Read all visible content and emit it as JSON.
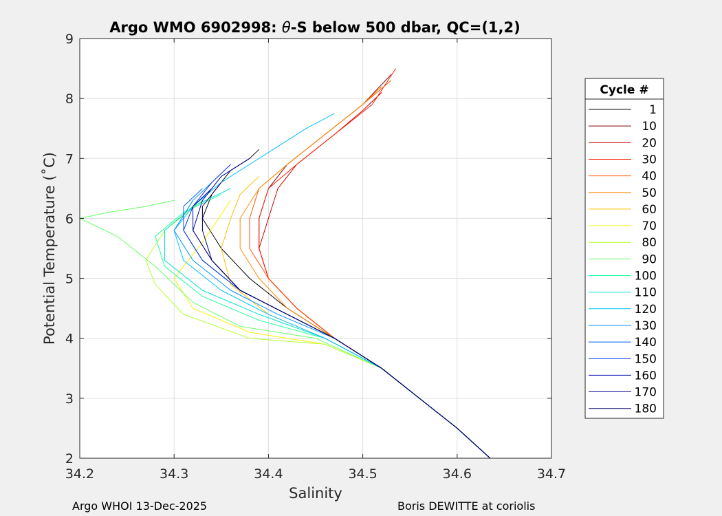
{
  "chart_data": {
    "type": "line",
    "title_prefix": "Argo WMO 6902998: ",
    "title_theta": "θ",
    "title_suffix": "-S below 500 dbar,  QC=(1,2)",
    "xlabel": "Salinity",
    "ylabel": "Potential Temperature (˚C)",
    "xlim": [
      34.2,
      34.7
    ],
    "ylim": [
      2,
      9
    ],
    "xticks": [
      34.2,
      34.3,
      34.4,
      34.5,
      34.6,
      34.7
    ],
    "yticks": [
      2,
      3,
      4,
      5,
      6,
      7,
      8,
      9
    ],
    "xtick_labels": [
      "34.2",
      "34.3",
      "34.4",
      "34.5",
      "34.6",
      "34.7"
    ],
    "ytick_labels": [
      "2",
      "3",
      "4",
      "5",
      "6",
      "7",
      "8",
      "9"
    ],
    "grid": true,
    "legend_title": "Cycle #",
    "legend_location": "outside-right",
    "legend": [
      {
        "label": "1",
        "color": "#000000"
      },
      {
        "label": "10",
        "color": "#7f0000"
      },
      {
        "label": "20",
        "color": "#c40000"
      },
      {
        "label": "30",
        "color": "#ff1a00"
      },
      {
        "label": "40",
        "color": "#ff5500"
      },
      {
        "label": "50",
        "color": "#ff8c00"
      },
      {
        "label": "60",
        "color": "#ffbf00"
      },
      {
        "label": "70",
        "color": "#f5f500"
      },
      {
        "label": "80",
        "color": "#b3ff33"
      },
      {
        "label": "90",
        "color": "#66ff66"
      },
      {
        "label": "100",
        "color": "#1aff9c"
      },
      {
        "label": "110",
        "color": "#00e0d0"
      },
      {
        "label": "120",
        "color": "#00bfff"
      },
      {
        "label": "130",
        "color": "#0090ff"
      },
      {
        "label": "140",
        "color": "#0060ff"
      },
      {
        "label": "150",
        "color": "#0030e0"
      },
      {
        "label": "160",
        "color": "#0000b0"
      },
      {
        "label": "170",
        "color": "#000090"
      },
      {
        "label": "180",
        "color": "#000060"
      }
    ],
    "series": [
      {
        "name": "Cycle 1",
        "color": "#000000",
        "x": [
          34.635,
          34.6,
          34.56,
          34.52,
          34.47,
          34.42,
          34.38,
          34.35,
          34.33,
          34.34,
          34.36,
          34.38,
          34.39
        ],
        "y": [
          2.0,
          2.5,
          3.0,
          3.5,
          4.0,
          4.5,
          5.0,
          5.5,
          6.0,
          6.4,
          6.8,
          7.0,
          7.15
        ]
      },
      {
        "name": "Cycle 10",
        "color": "#7f0000",
        "x": [
          34.635,
          34.6,
          34.56,
          34.52,
          34.47,
          34.43,
          34.4,
          34.39,
          34.39,
          34.4,
          34.42,
          34.46,
          34.5,
          34.53
        ],
        "y": [
          2.0,
          2.5,
          3.0,
          3.5,
          4.0,
          4.5,
          5.0,
          5.5,
          6.0,
          6.5,
          6.9,
          7.4,
          7.9,
          8.4
        ]
      },
      {
        "name": "Cycle 20",
        "color": "#c40000",
        "x": [
          34.635,
          34.6,
          34.56,
          34.52,
          34.47,
          34.43,
          34.4,
          34.39,
          34.4,
          34.41,
          34.43,
          34.47,
          34.5,
          34.52
        ],
        "y": [
          2.0,
          2.5,
          3.0,
          3.5,
          4.0,
          4.5,
          5.0,
          5.5,
          6.0,
          6.5,
          6.9,
          7.4,
          7.8,
          8.1
        ]
      },
      {
        "name": "Cycle 30",
        "color": "#ff1a00",
        "x": [
          34.635,
          34.6,
          34.56,
          34.52,
          34.47,
          34.43,
          34.4,
          34.39,
          34.39,
          34.4,
          34.43,
          34.47,
          34.51,
          34.535
        ],
        "y": [
          2.0,
          2.5,
          3.0,
          3.5,
          4.0,
          4.5,
          5.0,
          5.5,
          6.0,
          6.5,
          6.9,
          7.4,
          7.9,
          8.5
        ]
      },
      {
        "name": "Cycle 40",
        "color": "#ff5500",
        "x": [
          34.635,
          34.6,
          34.56,
          34.52,
          34.47,
          34.43,
          34.4,
          34.38,
          34.38,
          34.39,
          34.42,
          34.46,
          34.5,
          34.53
        ],
        "y": [
          2.0,
          2.5,
          3.0,
          3.5,
          4.0,
          4.5,
          5.0,
          5.5,
          6.0,
          6.5,
          6.9,
          7.4,
          7.9,
          8.3
        ]
      },
      {
        "name": "Cycle 50",
        "color": "#ff8c00",
        "x": [
          34.635,
          34.6,
          34.56,
          34.52,
          34.47,
          34.42,
          34.39,
          34.37,
          34.37,
          34.39,
          34.42,
          34.46,
          34.5,
          34.52
        ],
        "y": [
          2.0,
          2.5,
          3.0,
          3.5,
          4.0,
          4.5,
          5.0,
          5.5,
          6.0,
          6.5,
          6.9,
          7.4,
          7.9,
          8.2
        ]
      },
      {
        "name": "Cycle 60",
        "color": "#ffbf00",
        "x": [
          34.635,
          34.6,
          34.56,
          34.52,
          34.46,
          34.4,
          34.36,
          34.35,
          34.36,
          34.37,
          34.39
        ],
        "y": [
          2.0,
          2.5,
          3.0,
          3.5,
          4.0,
          4.4,
          4.9,
          5.5,
          6.0,
          6.4,
          6.7
        ]
      },
      {
        "name": "Cycle 70",
        "color": "#f5f500",
        "x": [
          34.635,
          34.6,
          34.56,
          34.52,
          34.46,
          34.38,
          34.32,
          34.3,
          34.33,
          34.36
        ],
        "y": [
          2.0,
          2.5,
          3.0,
          3.5,
          3.9,
          4.1,
          4.5,
          5.0,
          5.6,
          6.3
        ]
      },
      {
        "name": "Cycle 80",
        "color": "#b3ff33",
        "x": [
          34.635,
          34.6,
          34.56,
          34.52,
          34.46,
          34.38,
          34.31,
          34.28,
          34.27,
          34.29,
          34.33
        ],
        "y": [
          2.0,
          2.5,
          3.0,
          3.5,
          3.9,
          4.0,
          4.4,
          4.9,
          5.3,
          5.8,
          6.3
        ]
      },
      {
        "name": "Cycle 90",
        "color": "#66ff66",
        "x": [
          34.635,
          34.6,
          34.56,
          34.52,
          34.45,
          34.37,
          34.32,
          34.28,
          34.24,
          34.2,
          34.23,
          34.27,
          34.3
        ],
        "y": [
          2.0,
          2.5,
          3.0,
          3.5,
          4.0,
          4.2,
          4.6,
          5.2,
          5.7,
          6.0,
          6.1,
          6.2,
          6.3
        ]
      },
      {
        "name": "Cycle 100",
        "color": "#1aff9c",
        "x": [
          34.635,
          34.6,
          34.56,
          34.52,
          34.46,
          34.39,
          34.33,
          34.29,
          34.28,
          34.31,
          34.35
        ],
        "y": [
          2.0,
          2.5,
          3.0,
          3.5,
          4.0,
          4.3,
          4.7,
          5.2,
          5.7,
          6.1,
          6.4
        ]
      },
      {
        "name": "Cycle 110",
        "color": "#00e0d0",
        "x": [
          34.635,
          34.6,
          34.56,
          34.52,
          34.46,
          34.39,
          34.33,
          34.29,
          34.29,
          34.32,
          34.36
        ],
        "y": [
          2.0,
          2.5,
          3.0,
          3.5,
          4.0,
          4.4,
          4.8,
          5.3,
          5.8,
          6.2,
          6.5
        ]
      },
      {
        "name": "Cycle 120",
        "color": "#00bfff",
        "x": [
          34.635,
          34.6,
          34.56,
          34.52,
          34.46,
          34.4,
          34.35,
          34.31,
          34.3,
          34.32,
          34.35,
          34.4,
          34.44,
          34.47
        ],
        "y": [
          2.0,
          2.5,
          3.0,
          3.5,
          4.0,
          4.4,
          4.8,
          5.3,
          5.8,
          6.2,
          6.6,
          7.1,
          7.5,
          7.75
        ]
      },
      {
        "name": "Cycle 130",
        "color": "#0090ff",
        "x": [
          34.635,
          34.6,
          34.56,
          34.52,
          34.47,
          34.41,
          34.36,
          34.32,
          34.3,
          34.32,
          34.34
        ],
        "y": [
          2.0,
          2.5,
          3.0,
          3.5,
          4.0,
          4.4,
          4.8,
          5.3,
          5.8,
          6.3,
          6.6
        ]
      },
      {
        "name": "Cycle 140",
        "color": "#0060ff",
        "x": [
          34.635,
          34.6,
          34.56,
          34.52,
          34.47,
          34.42,
          34.37,
          34.33,
          34.31,
          34.31,
          34.33
        ],
        "y": [
          2.0,
          2.5,
          3.0,
          3.5,
          4.0,
          4.4,
          4.8,
          5.3,
          5.8,
          6.2,
          6.5
        ]
      },
      {
        "name": "Cycle 150",
        "color": "#0030e0",
        "x": [
          34.635,
          34.6,
          34.56,
          34.52,
          34.47,
          34.42,
          34.37,
          34.33,
          34.31,
          34.32,
          34.34,
          34.36
        ],
        "y": [
          2.0,
          2.5,
          3.0,
          3.5,
          4.0,
          4.4,
          4.8,
          5.3,
          5.8,
          6.2,
          6.6,
          6.9
        ]
      },
      {
        "name": "Cycle 160",
        "color": "#0000b0",
        "x": [
          34.635,
          34.6,
          34.56,
          34.52,
          34.47,
          34.42,
          34.37,
          34.34,
          34.32,
          34.32,
          34.34
        ],
        "y": [
          2.0,
          2.5,
          3.0,
          3.5,
          4.0,
          4.4,
          4.8,
          5.3,
          5.8,
          6.2,
          6.5
        ]
      },
      {
        "name": "Cycle 170",
        "color": "#000090",
        "x": [
          34.635,
          34.6,
          34.56,
          34.52,
          34.47,
          34.42,
          34.37,
          34.34,
          34.32,
          34.33,
          34.35,
          34.38
        ],
        "y": [
          2.0,
          2.5,
          3.0,
          3.5,
          4.0,
          4.4,
          4.8,
          5.3,
          5.8,
          6.3,
          6.7,
          7.0
        ]
      },
      {
        "name": "Cycle 180",
        "color": "#000060",
        "x": [
          34.635,
          34.6,
          34.56,
          34.52,
          34.47,
          34.42,
          34.37,
          34.34,
          34.33,
          34.33,
          34.35
        ],
        "y": [
          2.0,
          2.5,
          3.0,
          3.5,
          4.0,
          4.4,
          4.8,
          5.3,
          5.8,
          6.2,
          6.6
        ]
      }
    ]
  },
  "footer": {
    "left": "Argo WHOI 13-Dec-2025",
    "right": "Boris DEWITTE at coriolis"
  }
}
